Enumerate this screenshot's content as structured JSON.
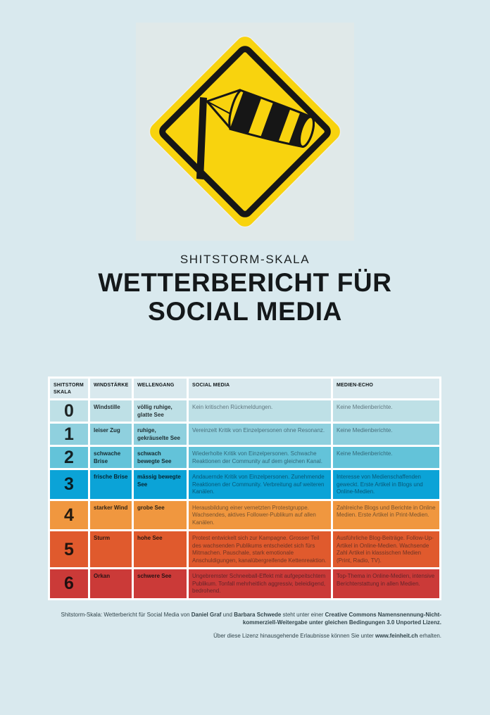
{
  "page": {
    "bg": "#d9e9ee"
  },
  "sign": {
    "name": "windsock-warning-sign",
    "square_bg": "#e0e9e9",
    "yellow": "#f8d30e",
    "black": "#161616"
  },
  "header": {
    "kicker": "SHITSTORM-SKALA",
    "title_line1": "WETTERBERICHT FÜR",
    "title_line2": "SOCIAL MEDIA"
  },
  "table": {
    "columns": [
      "SHITSTORM SKALA",
      "WINDSTÄRKE",
      "WELLENGANG",
      "SOCIAL MEDIA",
      "MEDIEN-ECHO"
    ],
    "rows": [
      {
        "level": "0",
        "color": "#bee0e6",
        "windstaerke": "Windstille",
        "wellengang": "völlig ruhige, glatte See",
        "social_media": "Kein kritischen Rückmeldungen.",
        "medien_echo": "Keine Medienberichte."
      },
      {
        "level": "1",
        "color": "#8fd0de",
        "windstaerke": "leiser Zug",
        "wellengang": "ruhige, gekräuselte See",
        "social_media": "Vereinzelt Kritik von Einzelpersonen ohne Resonanz.",
        "medien_echo": "Keine Medienberichte."
      },
      {
        "level": "2",
        "color": "#63c3d9",
        "windstaerke": "schwache Brise",
        "wellengang": "schwach bewegte See",
        "social_media": "Wiederholte Kritik von Einzelpersonen. Schwache Reaktionen der Community auf dem gleichen Kanal.",
        "medien_echo": "Keine Medienberichte."
      },
      {
        "level": "3",
        "color": "#0ba3d7",
        "windstaerke": "frische Brise",
        "wellengang": "mässig bewegte See",
        "social_media": "Andauernde Kritik von Einzelpersonen. Zunehmende Reaktionen der Community. Verbreitung auf weiteren Kanälen.",
        "medien_echo": "Interesse von Medienschaffenden geweckt. Erste Artikel in Blogs und Online-Medien."
      },
      {
        "level": "4",
        "color": "#f0973f",
        "windstaerke": "starker Wind",
        "wellengang": "grobe See",
        "social_media": "Herausbildung einer vernetzten Protestgruppe. Wachsendes, aktives Follower-Publikum auf allen Kanälen.",
        "medien_echo": "Zahlreiche Blogs und Berichte in Online Medien. Erste Artikel in Print-Medien."
      },
      {
        "level": "5",
        "color": "#e05a2d",
        "windstaerke": "Sturm",
        "wellengang": "hohe See",
        "social_media": "Protest entwickelt sich zur Kampagne. Grosser Teil des wachsenden Publikums entscheidet sich fürs Mitmachen. Pauschale, stark emotionale Anschuldigungen, kanalübergreifende Kettenreaktion.",
        "medien_echo": "Ausführliche Blog-Beiträge. Follow-Up-Artikel in Online-Medien. Wachsende Zahl Artikel in klassischen Medien (Print, Radio, TV)."
      },
      {
        "level": "6",
        "color": "#cb3a38",
        "windstaerke": "Orkan",
        "wellengang": "schwere See",
        "social_media": "Ungebremster Schneeball-Effekt mit aufgepeitschtem Publikum. Tonfall mehrheitlich aggressiv, beleidigend, bedrohend.",
        "medien_echo": "Top-Thema in Online-Medien, intensive Berichterstattung in allen Medien."
      }
    ]
  },
  "footer": {
    "license_segments": [
      {
        "text": "Shitstorm-Skala: Wetterbericht für Social Media von ",
        "bold": false
      },
      {
        "text": "Daniel Graf",
        "bold": true
      },
      {
        "text": " und ",
        "bold": false
      },
      {
        "text": "Barbara Schwede",
        "bold": true
      },
      {
        "text": " steht unter einer ",
        "bold": false
      },
      {
        "text": "Creative Commons Namensnennung-Nicht-kommerziell-Weitergabe unter gleichen Bedingungen 3.0 Unported Lizenz.",
        "bold": true
      }
    ],
    "permissions_segments": [
      {
        "text": "Über diese Lizenz hinausgehende Erlaubnisse können Sie unter ",
        "bold": false
      },
      {
        "text": "www.feinheit.ch",
        "bold": true,
        "link": true,
        "name": "feinheit-link"
      },
      {
        "text": " erhalten.",
        "bold": false
      }
    ]
  }
}
